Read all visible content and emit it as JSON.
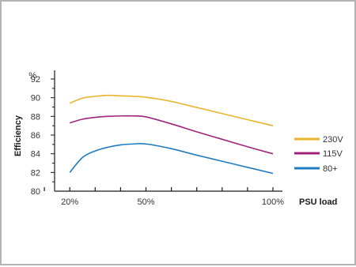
{
  "chart_data": {
    "type": "line",
    "title": "",
    "xlabel": "PSU load",
    "ylabel": "Efficiency",
    "y_unit": "%",
    "x_unit": "%",
    "xlim": [
      0,
      100
    ],
    "ylim": [
      80,
      92
    ],
    "y_ticks": [
      80,
      82,
      84,
      86,
      88,
      90,
      92
    ],
    "y_minor_step": 1,
    "x_ticks": [
      20,
      50,
      100
    ],
    "x_tick_labels": [
      "20%",
      "50%",
      "100%"
    ],
    "x_minor_ticks": [
      10,
      20,
      30,
      40,
      50,
      60,
      70,
      80,
      90,
      100
    ],
    "x": [
      20,
      25,
      30,
      35,
      40,
      45,
      50,
      60,
      70,
      80,
      90,
      100
    ],
    "series": [
      {
        "name": "230V",
        "color": "#e8b52e",
        "values": [
          89.4,
          89.95,
          90.15,
          90.25,
          90.2,
          90.15,
          90.05,
          89.6,
          88.95,
          88.3,
          87.65,
          87.0
        ]
      },
      {
        "name": "115V",
        "color": "#a0237a",
        "values": [
          87.3,
          87.7,
          87.9,
          88.0,
          88.05,
          88.05,
          87.95,
          87.2,
          86.35,
          85.55,
          84.75,
          84.0
        ]
      },
      {
        "name": "80+",
        "color": "#1f7cc0",
        "values": [
          82.0,
          83.6,
          84.3,
          84.7,
          84.95,
          85.05,
          85.05,
          84.55,
          83.85,
          83.2,
          82.55,
          81.9
        ]
      }
    ],
    "legend_position": "right",
    "grid": false
  }
}
